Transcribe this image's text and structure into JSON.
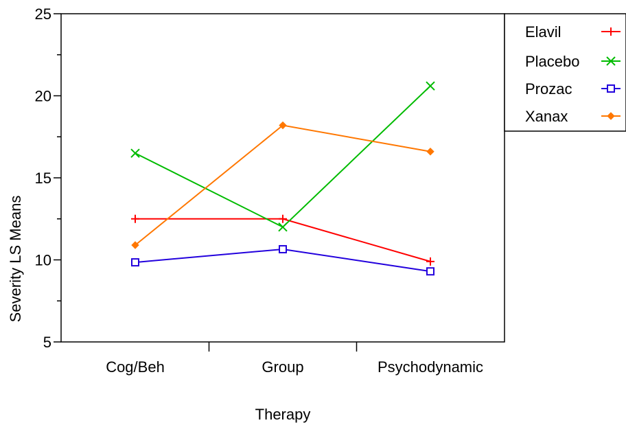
{
  "chart_data": {
    "type": "line",
    "xlabel": "Therapy",
    "ylabel": "Severity LS Means",
    "categories": [
      "Cog/Beh",
      "Group",
      "Psychodynamic"
    ],
    "ylim": [
      5,
      25
    ],
    "yticks": [
      5,
      10,
      15,
      20,
      25
    ],
    "grid": false,
    "legend_position": "top-right",
    "series": [
      {
        "name": "Elavil",
        "values": [
          12.5,
          12.5,
          9.9
        ],
        "color": "#ff0000",
        "marker": "plus"
      },
      {
        "name": "Placebo",
        "values": [
          16.5,
          12.0,
          20.6
        ],
        "color": "#00bb00",
        "marker": "x"
      },
      {
        "name": "Prozac",
        "values": [
          9.85,
          10.65,
          9.3
        ],
        "color": "#2200dd",
        "marker": "square"
      },
      {
        "name": "Xanax",
        "values": [
          10.9,
          18.2,
          16.6
        ],
        "color": "#ff7700",
        "marker": "diamond"
      }
    ]
  }
}
